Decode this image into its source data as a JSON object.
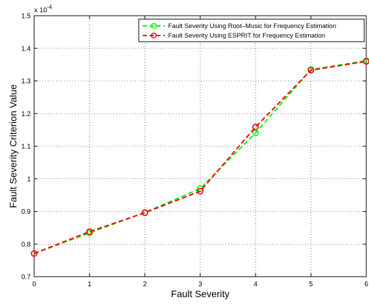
{
  "chart_data": {
    "type": "line",
    "xlabel": "Fault Severity",
    "ylabel": "Fault Severity Criterion Value",
    "exponent_label": "x 10",
    "exponent_power": "-4",
    "xlim": [
      0,
      6
    ],
    "ylim": [
      0.7,
      1.5
    ],
    "xticks": [
      0,
      1,
      2,
      3,
      4,
      5,
      6
    ],
    "xtick_labels": [
      "0",
      "1",
      "2",
      "3",
      "4",
      "5",
      "6"
    ],
    "yticks": [
      0.7,
      0.8,
      0.9,
      1.0,
      1.1,
      1.2,
      1.3,
      1.4,
      1.5
    ],
    "ytick_labels": [
      "0.7",
      "0.8",
      "0.9",
      "1",
      "1.1",
      "1.2",
      "1.3",
      "1.4",
      "1.5"
    ],
    "grid": true,
    "legend_position": "top-right",
    "x": [
      0,
      1,
      2,
      3,
      4,
      5,
      6
    ],
    "series": [
      {
        "name": "Fault Severity Using Root–Music for Frequency Estimation",
        "values": [
          0.771,
          0.834,
          0.897,
          0.97,
          1.141,
          1.335,
          1.362
        ],
        "color": "#00ff00",
        "style": "dashed",
        "marker": "circle"
      },
      {
        "name": "Fault Severity Using ESPRIT for Frequency Estimation",
        "values": [
          0.771,
          0.838,
          0.896,
          0.962,
          1.159,
          1.333,
          1.36
        ],
        "color": "#ff0000",
        "style": "dashed",
        "marker": "circle"
      }
    ]
  }
}
